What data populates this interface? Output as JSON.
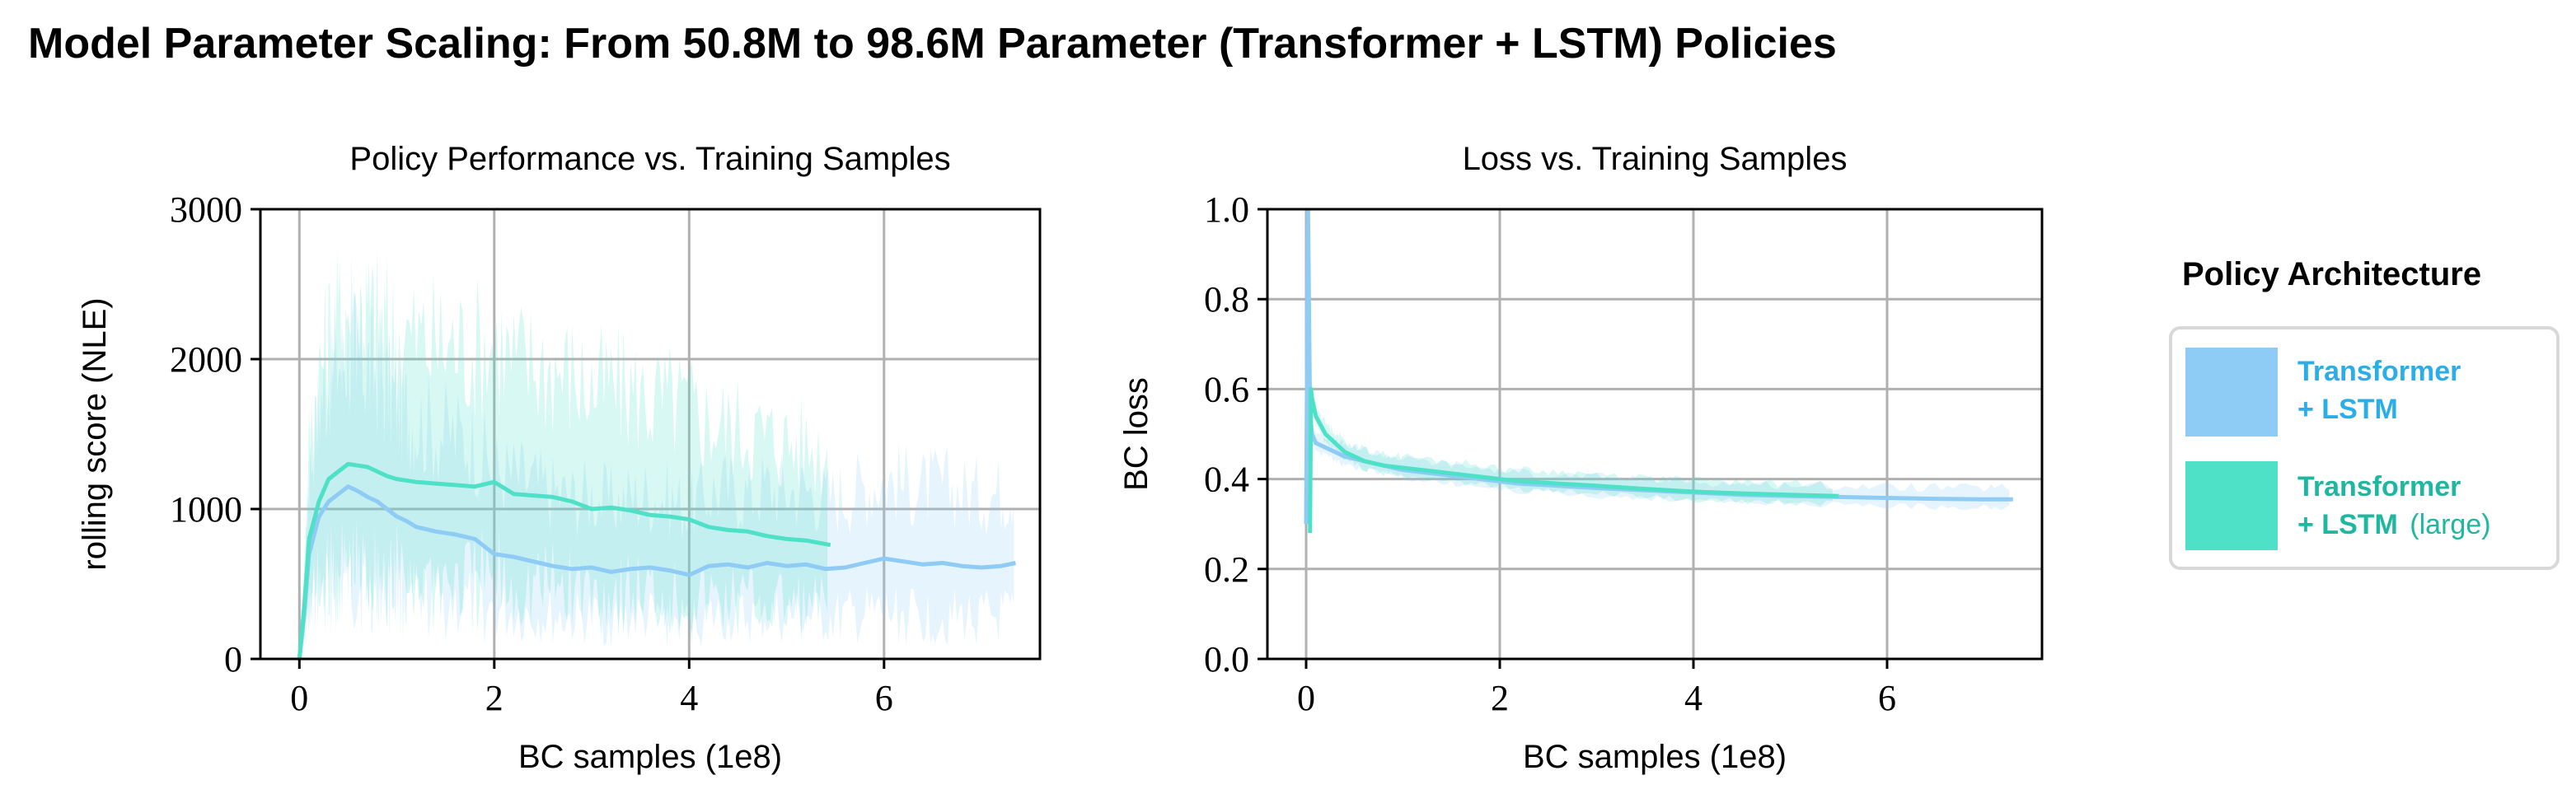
{
  "title": "Model Parameter Scaling: From 50.8M to 98.6M Parameter (Transformer + LSTM) Policies",
  "legend": {
    "title": "Policy Architecture",
    "items": [
      {
        "line1": "Transformer",
        "line2": "+ LSTM",
        "suffix": "",
        "color": "#8ecbf5",
        "text_color": "#2baee8"
      },
      {
        "line1": "Transformer",
        "line2": "+ LSTM",
        "suffix": "(large)",
        "color": "#4fe0c8",
        "text_color": "#1fb7a0"
      }
    ]
  },
  "chart_data": [
    {
      "type": "line",
      "title": "Policy Performance vs. Training Samples",
      "xlabel": "BC samples (1e8)",
      "ylabel": "rolling score (NLE)",
      "xlim": [
        -0.4,
        7.6
      ],
      "ylim": [
        0,
        3000
      ],
      "xticks": [
        "0",
        "2",
        "4",
        "6"
      ],
      "yticks": [
        "0",
        "1000",
        "2000",
        "3000"
      ],
      "grid": true,
      "series": [
        {
          "name": "Transformer + LSTM",
          "color": "#8ecbf5",
          "x": [
            0,
            0.05,
            0.1,
            0.2,
            0.3,
            0.4,
            0.5,
            0.6,
            0.7,
            0.8,
            0.9,
            1.0,
            1.1,
            1.2,
            1.4,
            1.6,
            1.8,
            2.0,
            2.2,
            2.4,
            2.6,
            2.8,
            3.0,
            3.2,
            3.4,
            3.6,
            3.8,
            4.0,
            4.2,
            4.4,
            4.6,
            4.8,
            5.0,
            5.2,
            5.4,
            5.6,
            5.8,
            6.0,
            6.2,
            6.4,
            6.6,
            6.8,
            7.0,
            7.2,
            7.35
          ],
          "y": [
            0,
            300,
            700,
            950,
            1050,
            1100,
            1150,
            1120,
            1080,
            1050,
            1000,
            950,
            920,
            880,
            850,
            830,
            800,
            700,
            680,
            650,
            620,
            600,
            610,
            580,
            600,
            610,
            590,
            560,
            620,
            630,
            610,
            640,
            620,
            630,
            600,
            610,
            640,
            670,
            650,
            630,
            640,
            620,
            610,
            620,
            640
          ]
        },
        {
          "name": "Transformer + LSTM (large)",
          "color": "#4fe0c8",
          "x": [
            0,
            0.05,
            0.1,
            0.2,
            0.3,
            0.4,
            0.5,
            0.6,
            0.7,
            0.8,
            0.9,
            1.0,
            1.2,
            1.4,
            1.6,
            1.8,
            2.0,
            2.2,
            2.4,
            2.6,
            2.8,
            3.0,
            3.2,
            3.4,
            3.6,
            3.8,
            4.0,
            4.2,
            4.4,
            4.6,
            4.8,
            5.0,
            5.2,
            5.45
          ],
          "y": [
            0,
            350,
            800,
            1050,
            1200,
            1250,
            1300,
            1290,
            1280,
            1250,
            1220,
            1200,
            1180,
            1170,
            1160,
            1150,
            1180,
            1100,
            1090,
            1080,
            1050,
            1000,
            1010,
            990,
            960,
            950,
            930,
            880,
            860,
            850,
            820,
            800,
            790,
            760
          ]
        }
      ]
    },
    {
      "type": "line",
      "title": "Loss vs. Training Samples",
      "xlabel": "BC samples (1e8)",
      "ylabel": "BC loss",
      "xlim": [
        -0.4,
        7.6
      ],
      "ylim": [
        0.0,
        1.0
      ],
      "xticks": [
        "0",
        "2",
        "4",
        "6"
      ],
      "yticks": [
        "0.0",
        "0.2",
        "0.4",
        "0.6",
        "0.8",
        "1.0"
      ],
      "grid": true,
      "series": [
        {
          "name": "Transformer + LSTM",
          "color": "#8ecbf5",
          "x": [
            0,
            0.02,
            0.04,
            0.06,
            0.1,
            0.2,
            0.3,
            0.4,
            0.6,
            0.8,
            1.0,
            1.4,
            1.8,
            2.2,
            2.6,
            3.0,
            3.5,
            4.0,
            4.5,
            5.0,
            5.5,
            6.0,
            6.5,
            7.0,
            7.3
          ],
          "y": [
            0.3,
            1.0,
            0.55,
            0.5,
            0.48,
            0.47,
            0.46,
            0.45,
            0.44,
            0.43,
            0.42,
            0.41,
            0.4,
            0.39,
            0.385,
            0.38,
            0.375,
            0.37,
            0.365,
            0.362,
            0.36,
            0.358,
            0.356,
            0.355,
            0.355
          ]
        },
        {
          "name": "Transformer + LSTM (large)",
          "color": "#4fe0c8",
          "x": [
            0.04,
            0.05,
            0.06,
            0.08,
            0.1,
            0.2,
            0.3,
            0.4,
            0.6,
            0.8,
            1.0,
            1.4,
            1.8,
            2.2,
            2.6,
            3.0,
            3.5,
            4.0,
            4.5,
            5.0,
            5.5
          ],
          "y": [
            0.28,
            0.6,
            0.58,
            0.56,
            0.54,
            0.5,
            0.48,
            0.46,
            0.44,
            0.43,
            0.425,
            0.415,
            0.405,
            0.395,
            0.39,
            0.385,
            0.378,
            0.372,
            0.368,
            0.365,
            0.362
          ]
        }
      ]
    }
  ]
}
